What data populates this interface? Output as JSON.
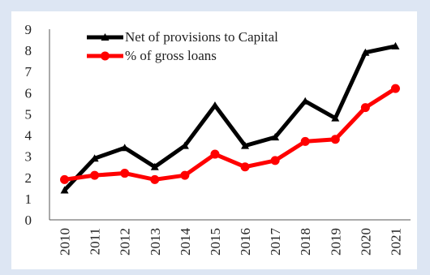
{
  "chart_data": {
    "type": "line",
    "title": "",
    "xlabel": "",
    "ylabel": "",
    "categories": [
      "2010",
      "2011",
      "2012",
      "2013",
      "2014",
      "2015",
      "2016",
      "2017",
      "2018",
      "2019",
      "2020",
      "2021"
    ],
    "ylim": [
      0,
      9
    ],
    "yticks": [
      "0",
      "1",
      "2",
      "3",
      "4",
      "5",
      "6",
      "7",
      "8",
      "9"
    ],
    "grid": false,
    "legend_position": "top-center",
    "series": [
      {
        "name": "Net of provisions  to Capital",
        "values": [
          1.4,
          2.9,
          3.4,
          2.5,
          3.5,
          5.4,
          3.5,
          3.9,
          5.6,
          4.8,
          7.9,
          8.2
        ],
        "color": "#000000",
        "marker": "triangle"
      },
      {
        "name": "% of gross loans",
        "values": [
          1.9,
          2.1,
          2.2,
          1.9,
          2.1,
          3.1,
          2.5,
          2.8,
          3.7,
          3.8,
          5.3,
          6.2
        ],
        "color": "#ff0000",
        "marker": "circle"
      }
    ]
  }
}
